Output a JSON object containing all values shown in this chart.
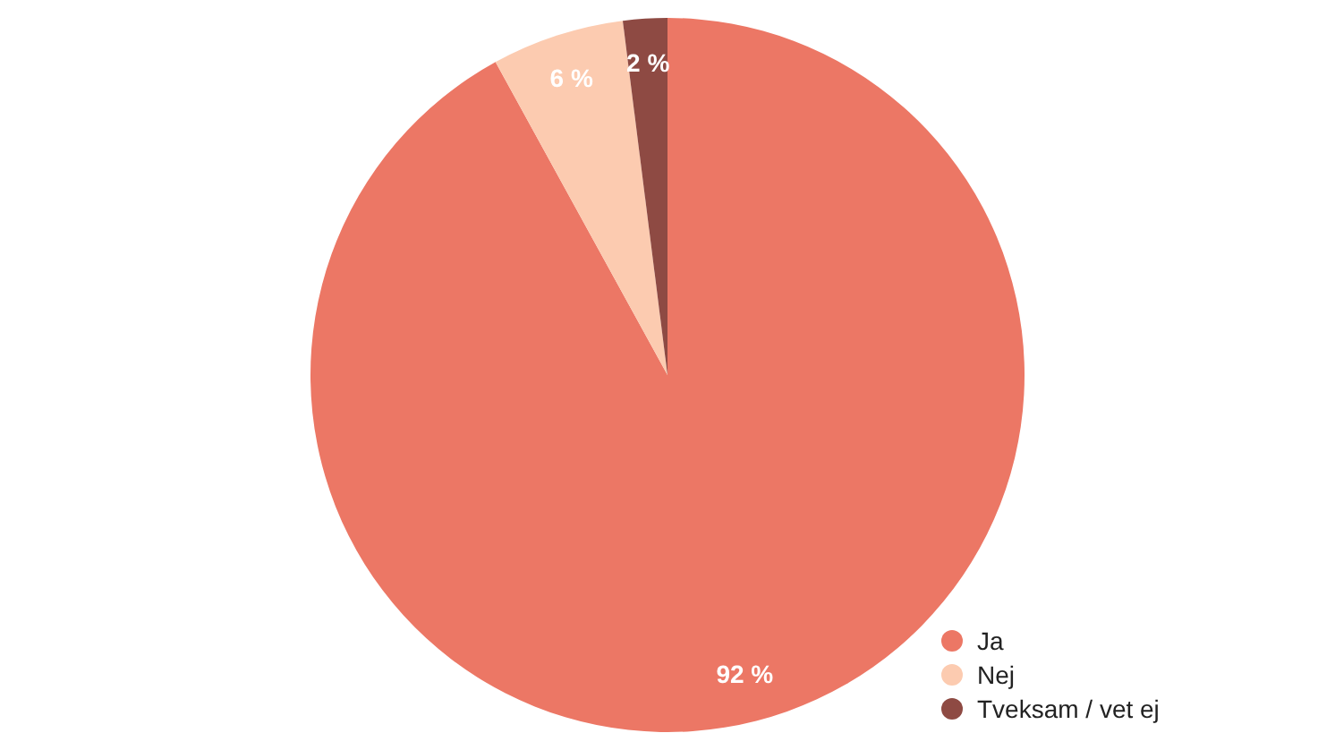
{
  "chart_data": {
    "type": "pie",
    "categories": [
      "Ja",
      "Nej",
      "Tveksam / vet ej"
    ],
    "values": [
      92,
      6,
      2
    ],
    "colors": [
      "#ec7765",
      "#fccbb0",
      "#8e4a43"
    ],
    "value_labels": [
      "92 %",
      "6 %",
      "2 %"
    ],
    "legend": "bottom right"
  }
}
